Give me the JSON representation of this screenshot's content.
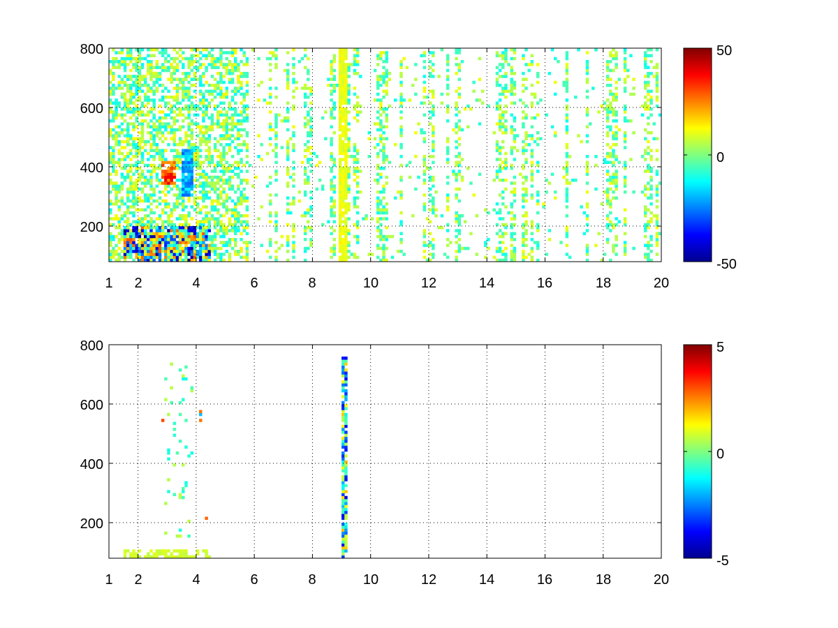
{
  "chart_data": [
    {
      "type": "heatmap",
      "title": "",
      "xlabel": "",
      "ylabel": "",
      "xlim": [
        1,
        20
      ],
      "ylim": [
        80,
        800
      ],
      "x_ticks": [
        "1",
        "2",
        "4",
        "6",
        "8",
        "10",
        "12",
        "14",
        "16",
        "18",
        "20"
      ],
      "x_tick_values": [
        1,
        2,
        4,
        6,
        8,
        10,
        12,
        14,
        16,
        18,
        20
      ],
      "y_ticks": [
        "200",
        "400",
        "600",
        "800"
      ],
      "y_tick_values": [
        200,
        400,
        600,
        800
      ],
      "grid": true,
      "grid_style": "dotted",
      "colormap": "jet",
      "clim": [
        -50,
        50
      ],
      "colorbar": {
        "ticks": [
          "50",
          "0",
          "-50"
        ],
        "tick_values": [
          50,
          0,
          -50
        ],
        "placement": "right"
      },
      "blank_value_range": [
        -4,
        4
      ],
      "features": [
        {
          "desc": "dense speckle band",
          "x": [
            1,
            5.8
          ],
          "y": [
            80,
            800
          ],
          "values": [
            -14,
            14
          ]
        },
        {
          "desc": "positive hotspot",
          "x": [
            2.8,
            3.3
          ],
          "y": [
            340,
            420
          ],
          "values": [
            20,
            40
          ]
        },
        {
          "desc": "negative streak",
          "x": [
            3.5,
            3.9
          ],
          "y": [
            300,
            460
          ],
          "values": [
            -28,
            -12
          ]
        },
        {
          "desc": "strong bottom band",
          "x": [
            1.5,
            4.5
          ],
          "y": [
            80,
            200
          ],
          "values": [
            -50,
            30
          ]
        },
        {
          "desc": "strong vertical stripe",
          "x": [
            8.9,
            9.15
          ],
          "y": [
            80,
            800
          ],
          "values": [
            8,
            14
          ]
        },
        {
          "desc": "sparse column stripes",
          "x": [
            5.8,
            20
          ],
          "y": [
            80,
            800
          ],
          "values": [
            -12,
            12
          ]
        }
      ]
    },
    {
      "type": "heatmap",
      "title": "",
      "xlabel": "",
      "ylabel": "",
      "xlim": [
        1,
        20
      ],
      "ylim": [
        80,
        800
      ],
      "x_ticks": [
        "1",
        "2",
        "4",
        "6",
        "8",
        "10",
        "12",
        "14",
        "16",
        "18",
        "20"
      ],
      "x_tick_values": [
        1,
        2,
        4,
        6,
        8,
        10,
        12,
        14,
        16,
        18,
        20
      ],
      "y_ticks": [
        "200",
        "400",
        "600",
        "800"
      ],
      "y_tick_values": [
        200,
        400,
        600,
        800
      ],
      "grid": true,
      "grid_style": "dotted",
      "colormap": "jet",
      "clim": [
        -5,
        5
      ],
      "colorbar": {
        "ticks": [
          "5",
          "0",
          "-5"
        ],
        "tick_values": [
          5,
          0,
          -5
        ],
        "placement": "right"
      },
      "blank_value_range": [
        -0.4,
        0.4
      ],
      "features": [
        {
          "desc": "faint bottom band",
          "x": [
            1.5,
            4.5
          ],
          "y": [
            80,
            110
          ],
          "values": [
            0.6,
            1.0
          ]
        },
        {
          "desc": "sparse cluster",
          "x": [
            2.9,
            3.9
          ],
          "y": [
            150,
            740
          ],
          "values": [
            -1.2,
            0.8
          ]
        },
        {
          "desc": "isolated strong points",
          "x": [
            2.8,
            4.5
          ],
          "y": [
            200,
            640
          ],
          "values": [
            -5,
            5
          ]
        },
        {
          "desc": "vertical stripe",
          "x": [
            9.0,
            9.15
          ],
          "y": [
            80,
            760
          ],
          "values": [
            -4,
            2
          ]
        }
      ]
    }
  ]
}
